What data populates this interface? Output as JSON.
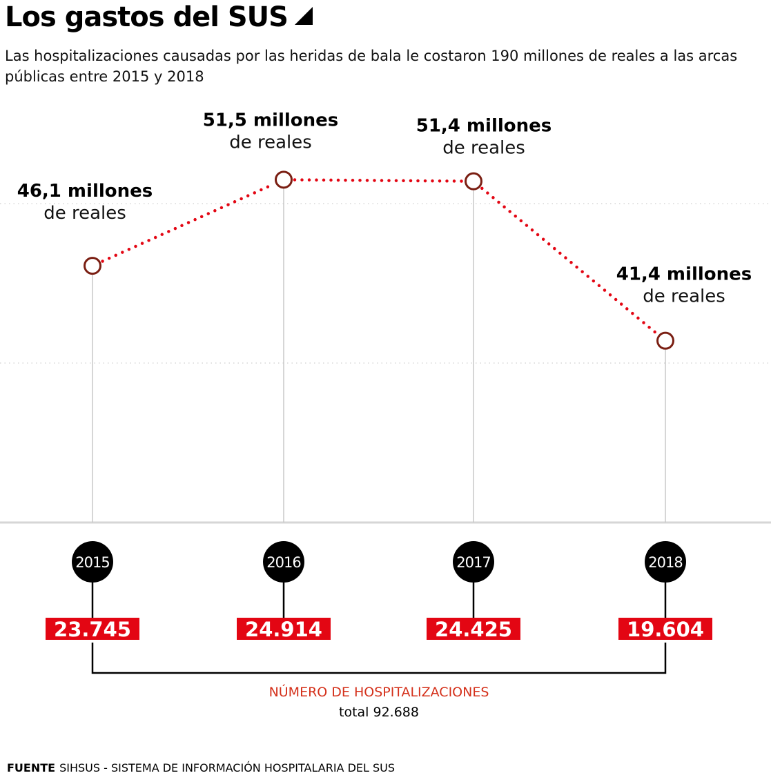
{
  "title": "Los gastos del SUS",
  "subtitle": "Las hospitalizaciones causadas por las heridas de bala le costaron 190 millones de reales a las arcas públicas entre 2015 y 2018",
  "chart_data": {
    "type": "line",
    "title": "Los gastos del SUS",
    "x": [
      "2015",
      "2016",
      "2017",
      "2018"
    ],
    "series": [
      {
        "name": "Gastos (millones de reales)",
        "values": [
          46.1,
          51.5,
          51.4,
          41.4
        ],
        "color": "#e30613",
        "marker_color": "#7a1e12"
      }
    ],
    "value_labels": [
      {
        "bold": "46,1 millones",
        "rest": "de reales"
      },
      {
        "bold": "51,5 millones",
        "rest": "de reales"
      },
      {
        "bold": "51,4 millones",
        "rest": "de reales"
      },
      {
        "bold": "41,4 millones",
        "rest": "de reales"
      }
    ],
    "ylim": [
      30,
      50
    ],
    "gridlines": [
      40,
      50
    ],
    "grid": true,
    "hospitalizations": {
      "values": [
        "23.745",
        "24.914",
        "24.425",
        "19.604"
      ],
      "label": "NÚMERO DE HOSPITALIZACIONES",
      "total_label": "total 92.688",
      "color": "#e30613"
    }
  },
  "footer": {
    "source_label": "FUENTE",
    "source_text": "SIHSUS - SISTEMA DE INFORMACIÓN HOSPITALARIA DEL SUS"
  }
}
